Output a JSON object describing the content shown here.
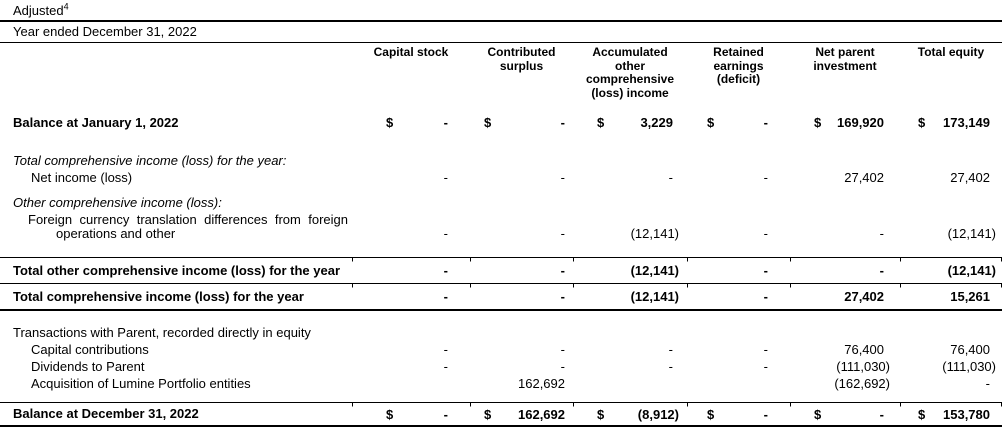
{
  "title": {
    "text": "Adjusted",
    "sup": "4"
  },
  "period_caption": "Year ended December 31, 2022",
  "columns": [
    {
      "lines": [
        "Capital stock"
      ]
    },
    {
      "lines": [
        "Contributed",
        "surplus"
      ]
    },
    {
      "lines": [
        "Accumulated",
        "other",
        "comprehensive",
        "(loss) income"
      ]
    },
    {
      "lines": [
        "Retained",
        "earnings",
        "(deficit)"
      ]
    },
    {
      "lines": [
        "Net parent",
        "investment"
      ]
    },
    {
      "lines": [
        "Total equity"
      ]
    }
  ],
  "rows": [
    {
      "label": "Balance at January 1, 2022",
      "values": [
        {
          "cur": "$",
          "val": "-"
        },
        {
          "cur": "$",
          "val": "-"
        },
        {
          "cur": "$",
          "val": "3,229"
        },
        {
          "cur": "$",
          "val": "-"
        },
        {
          "cur": "$",
          "val": "169,920"
        },
        {
          "cur": "$",
          "val": "173,149"
        }
      ]
    },
    {
      "label": "Total comprehensive income (loss) for the year:"
    },
    {
      "label": "Net income (loss)",
      "values": [
        {
          "val": "-"
        },
        {
          "val": "-"
        },
        {
          "val": "-"
        },
        {
          "val": "-"
        },
        {
          "val": "27,402"
        },
        {
          "val": "27,402"
        }
      ]
    },
    {
      "label": "Other comprehensive income (loss):"
    },
    {
      "label_line1": "Foreign currency translation differences from foreign",
      "label_line2": "operations and other",
      "values": [
        {
          "val": "-"
        },
        {
          "val": "-"
        },
        {
          "val": "(12,141)"
        },
        {
          "val": "-"
        },
        {
          "val": "-"
        },
        {
          "val": "(12,141)"
        }
      ]
    },
    {
      "label": "Total other comprehensive income (loss) for the year",
      "values": [
        {
          "val": "-"
        },
        {
          "val": "-"
        },
        {
          "val": "(12,141)"
        },
        {
          "val": "-"
        },
        {
          "val": "-"
        },
        {
          "val": "(12,141)"
        }
      ]
    },
    {
      "label": "Total comprehensive income (loss) for the year",
      "values": [
        {
          "val": "-"
        },
        {
          "val": "-"
        },
        {
          "val": "(12,141)"
        },
        {
          "val": "-"
        },
        {
          "val": "27,402"
        },
        {
          "val": "15,261"
        }
      ]
    },
    {
      "label": "Transactions with Parent, recorded directly in equity"
    },
    {
      "label": "Capital contributions",
      "values": [
        {
          "val": "-"
        },
        {
          "val": "-"
        },
        {
          "val": "-"
        },
        {
          "val": "-"
        },
        {
          "val": "76,400"
        },
        {
          "val": "76,400"
        }
      ]
    },
    {
      "label": "Dividends to Parent",
      "values": [
        {
          "val": "-"
        },
        {
          "val": "-"
        },
        {
          "val": "-"
        },
        {
          "val": "-"
        },
        {
          "val": "(111,030)"
        },
        {
          "val": "(111,030)"
        }
      ]
    },
    {
      "label": "Acquisition of Lumine Portfolio entities",
      "values": [
        {
          "val": ""
        },
        {
          "val": "162,692"
        },
        {
          "val": ""
        },
        {
          "val": ""
        },
        {
          "val": "(162,692)"
        },
        {
          "val": "-"
        }
      ]
    },
    {
      "label": "Balance at December 31, 2022",
      "values": [
        {
          "cur": "$",
          "val": "-"
        },
        {
          "cur": "$",
          "val": "162,692"
        },
        {
          "cur": "$",
          "val": "(8,912)"
        },
        {
          "cur": "$",
          "val": "-"
        },
        {
          "cur": "$",
          "val": "-"
        },
        {
          "cur": "$",
          "val": "153,780"
        }
      ]
    }
  ]
}
